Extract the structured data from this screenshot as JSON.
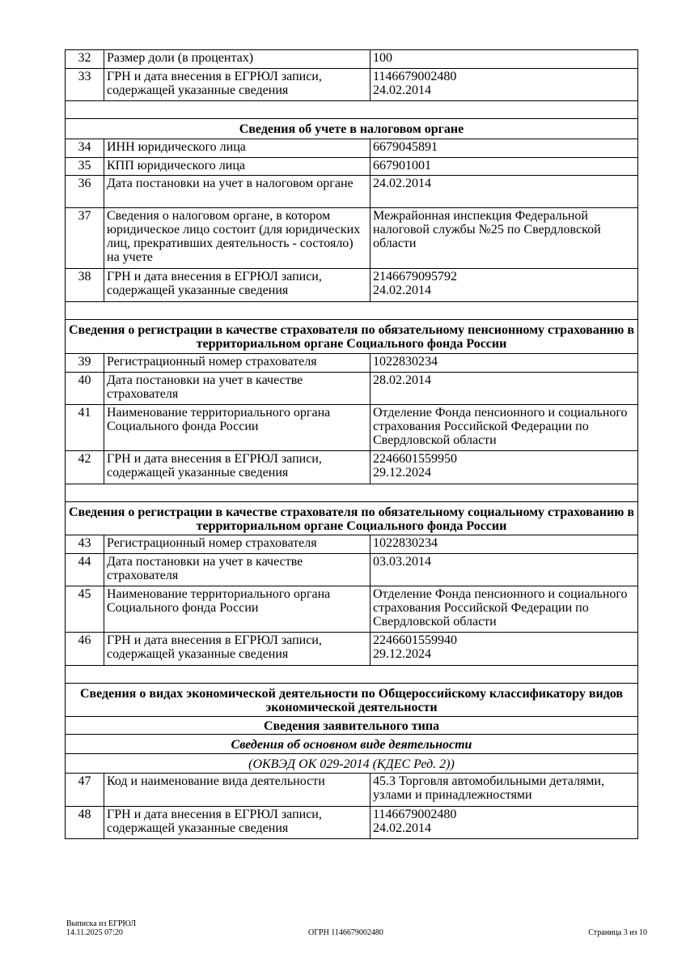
{
  "rows": [
    {
      "type": "row",
      "num": "32",
      "label": "Размер доли (в процентах)",
      "value": "100",
      "h": 23
    },
    {
      "type": "row",
      "num": "33",
      "label": "ГРН и дата внесения в ЕГРЮЛ записи, содержащей указанные сведения",
      "value": "1146679002480\n24.02.2014",
      "h": 40
    },
    {
      "type": "empty",
      "h": 22
    },
    {
      "type": "header",
      "text": "Сведения об учете в налоговом органе",
      "h": 25
    },
    {
      "type": "row",
      "num": "34",
      "label": "ИНН юридического лица",
      "value": "6679045891",
      "h": 23
    },
    {
      "type": "row",
      "num": "35",
      "label": "КПП юридического лица",
      "value": "667901001",
      "h": 22
    },
    {
      "type": "row",
      "num": "36",
      "label": "Дата постановки на учет в налоговом органе",
      "value": "24.02.2014",
      "h": 40
    },
    {
      "type": "row",
      "num": "37",
      "label": "Сведения о налоговом органе, в котором юридическое лицо состоит (для юридических лиц, прекративших деятельность - состояло) на учете",
      "value": "Межрайонная инспекция Федеральной налоговой службы №25 по Свердловской области",
      "h": 75
    },
    {
      "type": "row",
      "num": "38",
      "label": "ГРН и дата внесения в ЕГРЮЛ записи, содержащей указанные сведения",
      "value": "2146679095792\n24.02.2014",
      "h": 41
    },
    {
      "type": "empty",
      "h": 22
    },
    {
      "type": "header",
      "text": "Сведения о регистрации в качестве страхователя по обязательному пенсионному страхованию в территориальном органе Социального фонда России",
      "h": 42
    },
    {
      "type": "row",
      "num": "39",
      "label": "Регистрационный номер страхователя",
      "value": "1022830234",
      "h": 23
    },
    {
      "type": "row",
      "num": "40",
      "label": "Дата постановки на учет в качестве страхователя",
      "value": "28.02.2014",
      "h": 40
    },
    {
      "type": "row",
      "num": "41",
      "label": "Наименование территориального органа Социального фонда России",
      "value": "Отделение Фонда пенсионного и социального страхования Российской Федерации по Свердловской области",
      "h": 57
    },
    {
      "type": "row",
      "num": "42",
      "label": "ГРН и дата внесения в ЕГРЮЛ записи, содержащей указанные сведения",
      "value": "2246601559950\n29.12.2024",
      "h": 41
    },
    {
      "type": "empty",
      "h": 22
    },
    {
      "type": "header",
      "text": "Сведения о регистрации в качестве страхователя по обязательному социальному страхованию в территориальном органе Социального фонда России",
      "h": 41
    },
    {
      "type": "row",
      "num": "43",
      "label": "Регистрационный номер страхователя",
      "value": "1022830234",
      "h": 23
    },
    {
      "type": "row",
      "num": "44",
      "label": "Дата постановки на учет в качестве страхователя",
      "value": "03.03.2014",
      "h": 40
    },
    {
      "type": "row",
      "num": "45",
      "label": "Наименование территориального органа Социального фонда России",
      "value": "Отделение Фонда пенсионного и социального страхования Российской Федерации по Свердловской области",
      "h": 57
    },
    {
      "type": "row",
      "num": "46",
      "label": "ГРН и дата внесения в ЕГРЮЛ записи, содержащей указанные сведения",
      "value": "2246601559940\n29.12.2024",
      "h": 41
    },
    {
      "type": "empty",
      "h": 22
    },
    {
      "type": "header",
      "text": "Сведения о видах экономической деятельности по Общероссийскому классификатору видов экономической деятельности",
      "h": 41
    },
    {
      "type": "sub",
      "text": "Сведения заявительного типа",
      "h": 22
    },
    {
      "type": "italbold",
      "text": "Сведения об основном виде деятельности",
      "h": 24
    },
    {
      "type": "ital",
      "text": "(ОКВЭД ОК 029-2014 (КДЕС Ред. 2))",
      "h": 24
    },
    {
      "type": "row",
      "num": "47",
      "label": "Код и наименование вида деятельности",
      "value": "45.3 Торговля автомобильными деталями, узлами и принадлежностями",
      "h": 41
    },
    {
      "type": "row",
      "num": "48",
      "label": "ГРН и дата внесения в ЕГРЮЛ записи, содержащей указанные сведения",
      "value": "1146679002480\n24.02.2014",
      "h": 40
    }
  ],
  "footer": {
    "doc_title": "Выписка из ЕГРЮЛ",
    "datetime": "14.11.2025 07:20",
    "ogrn": "ОГРН 1146679002480",
    "page": "Страница 3 из 10"
  }
}
